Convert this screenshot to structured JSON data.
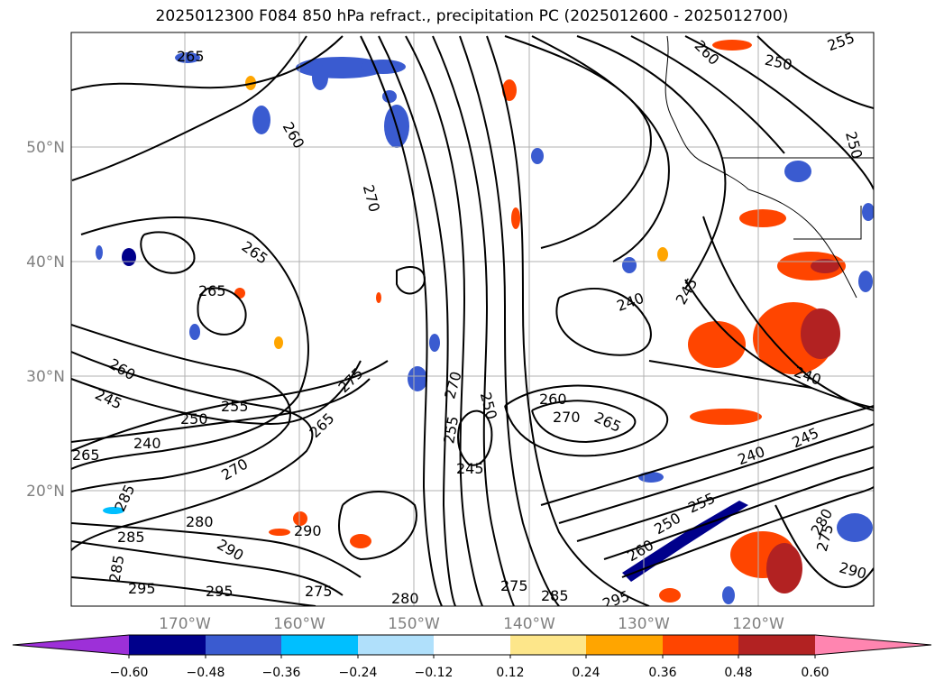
{
  "title": "2025012300 F084 850 hPa refract., precipitation PC (2025012600 - 2025012700)",
  "map": {
    "lat_labels": [
      "50°N",
      "40°N",
      "30°N",
      "20°N"
    ],
    "lon_labels": [
      "170°W",
      "160°W",
      "150°W",
      "140°W",
      "130°W",
      "120°W"
    ],
    "contour_labels": [
      "265",
      "260",
      "270",
      "265",
      "265",
      "260",
      "245",
      "250",
      "255",
      "240",
      "265",
      "270",
      "285",
      "280",
      "285",
      "285",
      "295",
      "295",
      "290",
      "290",
      "275",
      "280",
      "275",
      "265",
      "275",
      "270",
      "255",
      "250",
      "245",
      "260",
      "270",
      "265",
      "240",
      "245",
      "240",
      "245",
      "250",
      "255",
      "260",
      "295",
      "285",
      "280",
      "275",
      "290",
      "250",
      "255",
      "260",
      "250",
      "240"
    ]
  },
  "colorbar": {
    "ticks": [
      "−0.60",
      "−0.48",
      "−0.36",
      "−0.24",
      "−0.12",
      "0.12",
      "0.24",
      "0.36",
      "0.48",
      "0.60"
    ],
    "colors": [
      "#9d30d8",
      "#00008b",
      "#3a5bd0",
      "#00bfff",
      "#b0e0fb",
      "#ffffff",
      "#fde68a",
      "#ffa500",
      "#ff4500",
      "#b22222",
      "#ff85b0"
    ]
  }
}
